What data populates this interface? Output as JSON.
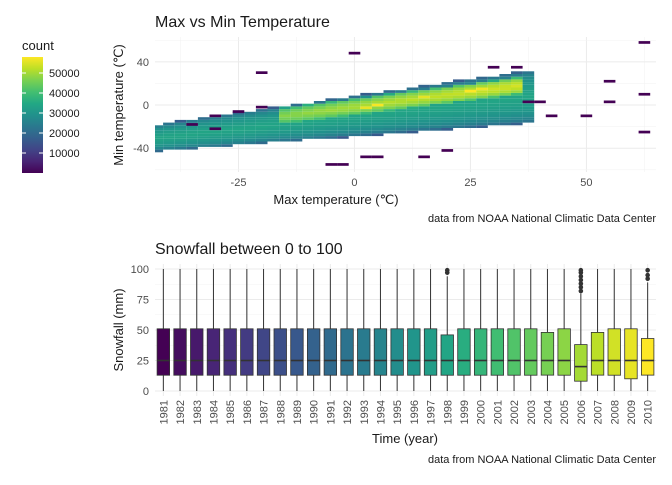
{
  "chart_data": [
    {
      "type": "heatmap",
      "title": "Max vs Min Temperature",
      "xlabel": "Max temperature (℃)",
      "ylabel": "Min temperature (℃)",
      "caption": "data from NOAA National Climatic Data Center",
      "xlim": [
        -43,
        65
      ],
      "ylim": [
        -62,
        63
      ],
      "x_ticks": [
        -25,
        0,
        25,
        50
      ],
      "y_ticks": [
        -40,
        0,
        40
      ],
      "x_tick_labels": [
        "-25",
        "0",
        "25",
        "50"
      ],
      "y_tick_labels": [
        "-40",
        "0",
        "40"
      ],
      "grid": true,
      "legend": {
        "title": "count",
        "position": "left",
        "breaks": [
          10000,
          20000,
          30000,
          40000,
          50000
        ],
        "labels": [
          "10000",
          "20000",
          "30000",
          "40000",
          "50000"
        ],
        "min": 1,
        "max": 58000,
        "palette": [
          "#440154",
          "#482475",
          "#414487",
          "#355f8d",
          "#2a788e",
          "#21918c",
          "#22a884",
          "#44bf70",
          "#7ad151",
          "#bddf26",
          "#fde725"
        ]
      },
      "bin_width": [
        2.5,
        2.5
      ],
      "bands": [
        {
          "x_from": -42.5,
          "x_to": 30,
          "lower_start": -43,
          "lower_end": -18,
          "upper_start": -20,
          "upper_end": 32
        },
        {
          "x_from": -25,
          "x_to": 0,
          "lower_start": -43,
          "lower_end": -30,
          "upper_start": -5,
          "upper_end": 10
        }
      ],
      "hot_band": {
        "x_from": -15,
        "x_to": 35,
        "center_start": -10,
        "center_end": 15,
        "half_width": 8
      },
      "peak_cells": [
        {
          "x": 5,
          "y": 0,
          "count": 52000
        },
        {
          "x": 25,
          "y": 13,
          "count": 58000
        },
        {
          "x": 27.5,
          "y": 15,
          "count": 45000
        },
        {
          "x": 2.5,
          "y": -2.5,
          "count": 40000
        },
        {
          "x": 15,
          "y": 7.5,
          "count": 38000
        }
      ],
      "outlier_cells": [
        {
          "x": -35,
          "y": -18
        },
        {
          "x": -30,
          "y": -22
        },
        {
          "x": -30,
          "y": -10
        },
        {
          "x": -25,
          "y": -6
        },
        {
          "x": -20,
          "y": -2
        },
        {
          "x": -20,
          "y": 30
        },
        {
          "x": 0,
          "y": 48
        },
        {
          "x": -5,
          "y": -55
        },
        {
          "x": -2.5,
          "y": -55
        },
        {
          "x": 2.5,
          "y": -48
        },
        {
          "x": 5,
          "y": -48
        },
        {
          "x": 15,
          "y": -48
        },
        {
          "x": 20,
          "y": -42
        },
        {
          "x": 30,
          "y": 35
        },
        {
          "x": 35,
          "y": 35
        },
        {
          "x": 37.5,
          "y": 3
        },
        {
          "x": 40,
          "y": 3
        },
        {
          "x": 42.5,
          "y": -10
        },
        {
          "x": 50,
          "y": -10
        },
        {
          "x": 55,
          "y": 22
        },
        {
          "x": 55,
          "y": 3
        },
        {
          "x": 62.5,
          "y": 10
        },
        {
          "x": 62.5,
          "y": -25
        },
        {
          "x": 62.5,
          "y": 58
        }
      ]
    },
    {
      "type": "boxplot",
      "title": "Snowfall between 0 to 100",
      "xlabel": "Time (year)",
      "ylabel": "Snowfall (mm)",
      "caption": "data from NOAA National Climatic Data Center",
      "ylim": [
        0,
        100
      ],
      "y_ticks": [
        0,
        25,
        50,
        75,
        100
      ],
      "y_tick_labels": [
        "0",
        "25",
        "50",
        "75",
        "100"
      ],
      "grid": true,
      "categories": [
        "1981",
        "1982",
        "1983",
        "1984",
        "1985",
        "1986",
        "1987",
        "1988",
        "1989",
        "1990",
        "1991",
        "1992",
        "1993",
        "1994",
        "1995",
        "1996",
        "1997",
        "1998",
        "1999",
        "2000",
        "2001",
        "2002",
        "2003",
        "2004",
        "2005",
        "2006",
        "2007",
        "2008",
        "2009",
        "2010"
      ],
      "boxes": [
        {
          "min": 0,
          "q1": 13,
          "median": 25,
          "q3": 51,
          "max": 100,
          "outliers": []
        },
        {
          "min": 0,
          "q1": 13,
          "median": 25,
          "q3": 51,
          "max": 100,
          "outliers": []
        },
        {
          "min": 0,
          "q1": 13,
          "median": 25,
          "q3": 51,
          "max": 100,
          "outliers": []
        },
        {
          "min": 0,
          "q1": 13,
          "median": 25,
          "q3": 51,
          "max": 100,
          "outliers": []
        },
        {
          "min": 0,
          "q1": 13,
          "median": 25,
          "q3": 51,
          "max": 100,
          "outliers": []
        },
        {
          "min": 0,
          "q1": 13,
          "median": 25,
          "q3": 51,
          "max": 100,
          "outliers": []
        },
        {
          "min": 0,
          "q1": 13,
          "median": 25,
          "q3": 51,
          "max": 100,
          "outliers": []
        },
        {
          "min": 0,
          "q1": 13,
          "median": 25,
          "q3": 51,
          "max": 100,
          "outliers": []
        },
        {
          "min": 0,
          "q1": 13,
          "median": 25,
          "q3": 51,
          "max": 100,
          "outliers": []
        },
        {
          "min": 0,
          "q1": 13,
          "median": 25,
          "q3": 51,
          "max": 100,
          "outliers": []
        },
        {
          "min": 0,
          "q1": 13,
          "median": 25,
          "q3": 51,
          "max": 100,
          "outliers": []
        },
        {
          "min": 0,
          "q1": 13,
          "median": 25,
          "q3": 51,
          "max": 100,
          "outliers": []
        },
        {
          "min": 0,
          "q1": 13,
          "median": 25,
          "q3": 51,
          "max": 100,
          "outliers": []
        },
        {
          "min": 0,
          "q1": 13,
          "median": 25,
          "q3": 51,
          "max": 100,
          "outliers": []
        },
        {
          "min": 0,
          "q1": 13,
          "median": 25,
          "q3": 51,
          "max": 100,
          "outliers": []
        },
        {
          "min": 0,
          "q1": 13,
          "median": 25,
          "q3": 51,
          "max": 100,
          "outliers": []
        },
        {
          "min": 0,
          "q1": 13,
          "median": 25,
          "q3": 51,
          "max": 100,
          "outliers": []
        },
        {
          "min": 0,
          "q1": 13,
          "median": 25,
          "q3": 46,
          "max": 94,
          "outliers": [
            97,
            99
          ]
        },
        {
          "min": 0,
          "q1": 13,
          "median": 25,
          "q3": 51,
          "max": 100,
          "outliers": []
        },
        {
          "min": 0,
          "q1": 13,
          "median": 25,
          "q3": 51,
          "max": 100,
          "outliers": []
        },
        {
          "min": 0,
          "q1": 13,
          "median": 25,
          "q3": 51,
          "max": 100,
          "outliers": []
        },
        {
          "min": 0,
          "q1": 13,
          "median": 25,
          "q3": 51,
          "max": 100,
          "outliers": []
        },
        {
          "min": 0,
          "q1": 13,
          "median": 25,
          "q3": 51,
          "max": 100,
          "outliers": []
        },
        {
          "min": 0,
          "q1": 13,
          "median": 25,
          "q3": 48,
          "max": 100,
          "outliers": []
        },
        {
          "min": 0,
          "q1": 13,
          "median": 25,
          "q3": 51,
          "max": 100,
          "outliers": []
        },
        {
          "min": 0,
          "q1": 8,
          "median": 20,
          "q3": 38,
          "max": 80,
          "outliers": [
            82,
            85,
            88,
            91,
            94,
            97,
            99
          ]
        },
        {
          "min": 0,
          "q1": 13,
          "median": 25,
          "q3": 48,
          "max": 100,
          "outliers": []
        },
        {
          "min": 0,
          "q1": 13,
          "median": 25,
          "q3": 51,
          "max": 100,
          "outliers": []
        },
        {
          "min": 0,
          "q1": 10,
          "median": 25,
          "q3": 51,
          "max": 100,
          "outliers": []
        },
        {
          "min": 0,
          "q1": 13,
          "median": 25,
          "q3": 43,
          "max": 89,
          "outliers": [
            92,
            95,
            99
          ]
        }
      ]
    }
  ]
}
